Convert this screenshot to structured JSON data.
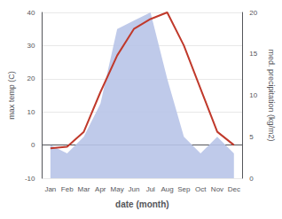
{
  "chart_data": {
    "type": "line",
    "categories": [
      "Jan",
      "Feb",
      "Mar",
      "Apr",
      "May",
      "Jun",
      "Jul",
      "Aug",
      "Sep",
      "Oct",
      "Nov",
      "Dec"
    ],
    "xlabel": "date (month)",
    "ylabel": "max temp (C)",
    "y2label": "med. precipitation (kg/m2)",
    "series": [
      {
        "type": "area",
        "axis": "y2",
        "color": "#b8c4e8",
        "values": [
          4,
          3,
          5,
          9,
          18,
          19,
          20,
          12,
          5,
          3,
          5,
          3
        ]
      },
      {
        "type": "line",
        "color": "#c0392b",
        "values": [
          -1,
          -0.5,
          4,
          16,
          27,
          35,
          38,
          40,
          30,
          17,
          4,
          0
        ]
      }
    ],
    "ylim": [
      -10,
      40
    ],
    "yticks": [
      -10,
      0,
      10,
      20,
      30,
      40
    ],
    "y2lim": [
      0,
      20
    ],
    "y2ticks": [
      0,
      5,
      10,
      15,
      20
    ],
    "grid": true
  }
}
